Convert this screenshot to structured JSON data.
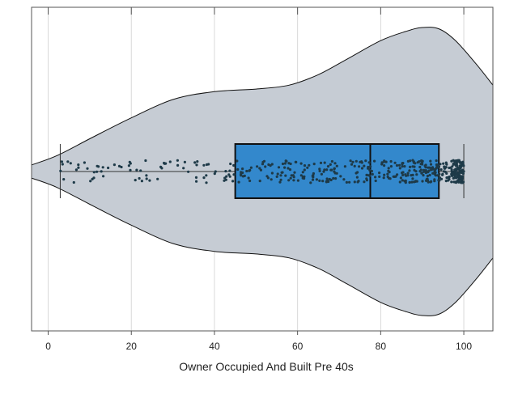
{
  "chart_data": {
    "type": "violin-box-strip",
    "xlabel": "Owner Occupied And Built Pre 40s",
    "xlim": [
      -4,
      107
    ],
    "xticks": [
      0,
      20,
      40,
      60,
      80,
      100
    ],
    "xtick_labels": [
      "0",
      "20",
      "40",
      "60",
      "80",
      "100"
    ],
    "grid": "vertical",
    "box": {
      "whisker_low": 2.9,
      "q1": 45.0,
      "median": 77.5,
      "q3": 94.0,
      "whisker_high": 100.0
    },
    "violin_relative_density": [
      {
        "x": -4,
        "d": 0.05
      },
      {
        "x": 2,
        "d": 0.12
      },
      {
        "x": 10,
        "d": 0.25
      },
      {
        "x": 20,
        "d": 0.41
      },
      {
        "x": 30,
        "d": 0.55
      },
      {
        "x": 40,
        "d": 0.61
      },
      {
        "x": 50,
        "d": 0.63
      },
      {
        "x": 58,
        "d": 0.66
      },
      {
        "x": 65,
        "d": 0.74
      },
      {
        "x": 72,
        "d": 0.86
      },
      {
        "x": 80,
        "d": 1.0
      },
      {
        "x": 86,
        "d": 1.07
      },
      {
        "x": 90,
        "d": 1.1
      },
      {
        "x": 94,
        "d": 1.09
      },
      {
        "x": 98,
        "d": 1.0
      },
      {
        "x": 103,
        "d": 0.82
      },
      {
        "x": 107,
        "d": 0.66
      }
    ],
    "n_points": 506,
    "colors": {
      "violin_fill": "#c6ccd4",
      "box_fill": "#3388cc",
      "points": "#1e3a48",
      "grid": "#d9d9d9",
      "frame": "#555555"
    }
  }
}
